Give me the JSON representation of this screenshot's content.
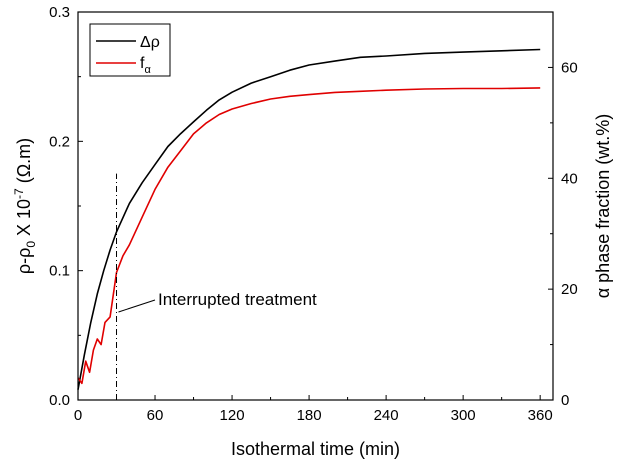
{
  "chart_data": {
    "type": "line",
    "title": "",
    "xlabel": "Isothermal time (min)",
    "ylabel": {
      "base": "ρ-ρ",
      "sub": "0",
      "mid": " X 10",
      "sup": "-7",
      "end": " (Ω.m)"
    },
    "y2label": "α phase fraction (wt.%)",
    "xlim": [
      0,
      370
    ],
    "ylim": [
      0,
      0.3
    ],
    "y2lim": [
      0,
      70
    ],
    "x_ticks": [
      "0",
      "60",
      "120",
      "180",
      "240",
      "300",
      "360"
    ],
    "y_ticks": [
      "0.0",
      "0.1",
      "0.2",
      "0.3"
    ],
    "y2_ticks": [
      "0",
      "20",
      "40",
      "60"
    ],
    "legend_position": "top-left",
    "series": [
      {
        "name": "Δρ",
        "axis": "left",
        "color": "#000000",
        "x": [
          0,
          5,
          10,
          15,
          20,
          25,
          30,
          40,
          50,
          60,
          70,
          80,
          90,
          100,
          110,
          120,
          135,
          150,
          165,
          180,
          200,
          220,
          240,
          270,
          300,
          330,
          360
        ],
        "y": [
          0.008,
          0.035,
          0.06,
          0.082,
          0.1,
          0.116,
          0.13,
          0.152,
          0.168,
          0.182,
          0.196,
          0.206,
          0.215,
          0.224,
          0.232,
          0.238,
          0.245,
          0.25,
          0.255,
          0.259,
          0.262,
          0.265,
          0.266,
          0.268,
          0.269,
          0.27,
          0.271
        ]
      },
      {
        "name": "fα",
        "legend_base": "f",
        "legend_sub": "α",
        "axis": "right",
        "color": "#e00000",
        "x": [
          0,
          3,
          6,
          9,
          12,
          15,
          18,
          21,
          25,
          30,
          35,
          40,
          50,
          60,
          70,
          80,
          90,
          100,
          110,
          120,
          135,
          150,
          165,
          180,
          200,
          220,
          240,
          270,
          300,
          330,
          360
        ],
        "y": [
          4,
          3,
          7,
          5,
          9,
          11,
          10,
          14,
          15,
          23,
          26,
          28,
          33,
          38,
          42,
          45,
          48,
          50,
          51.5,
          52.5,
          53.5,
          54.3,
          54.8,
          55.1,
          55.5,
          55.7,
          55.9,
          56.1,
          56.2,
          56.2,
          56.3
        ]
      }
    ],
    "annotation": {
      "text": "Interrupted treatment",
      "x": 30,
      "line_y_range": [
        0,
        0.175
      ]
    }
  }
}
